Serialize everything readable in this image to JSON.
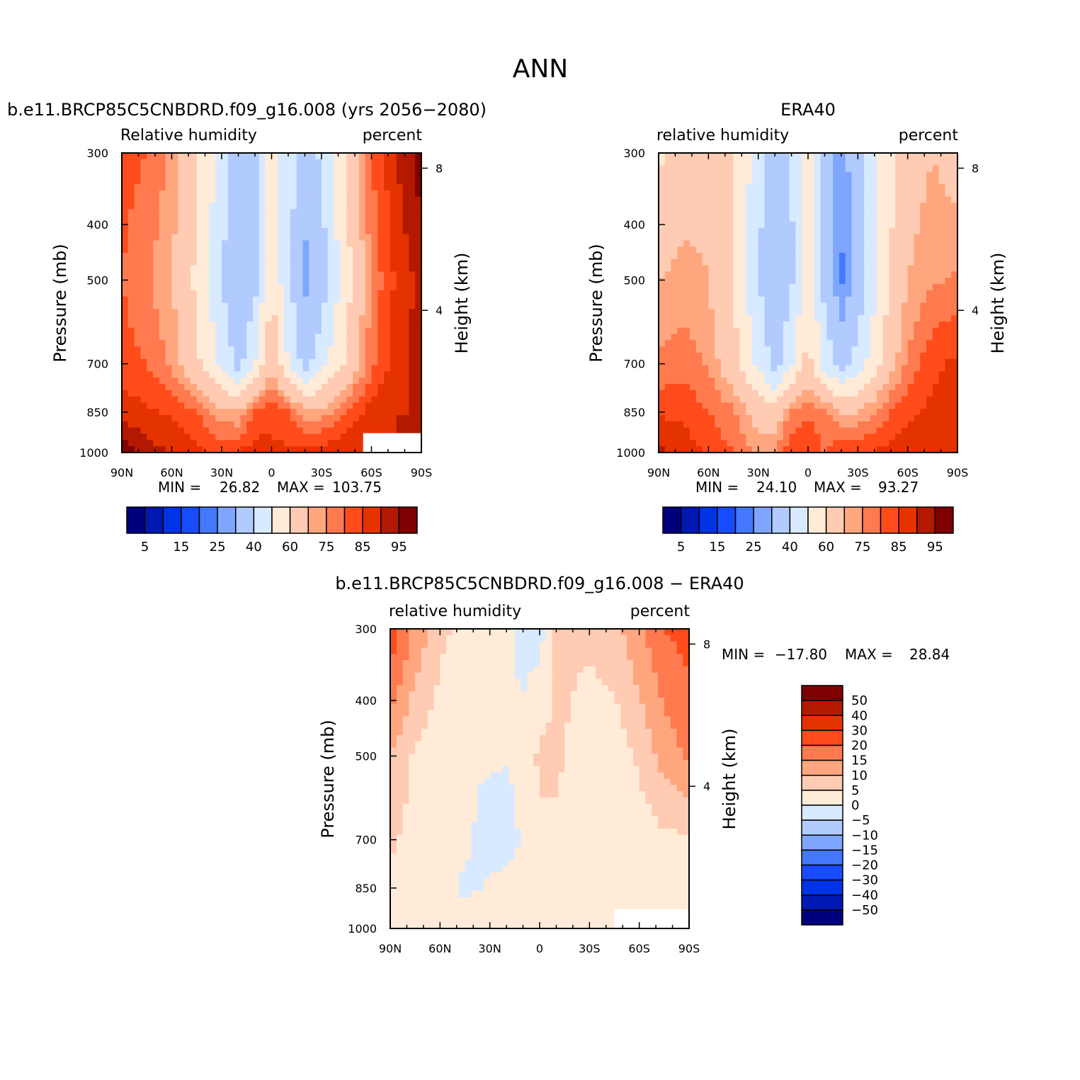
{
  "figure": {
    "title": "ANN"
  },
  "colors": {
    "full_palette": [
      "#00007f",
      "#0019b2",
      "#0033e5",
      "#1a4cff",
      "#4478ff",
      "#7fa6ff",
      "#b2cbff",
      "#d8eaff",
      "#ffebd8",
      "#ffcbb2",
      "#ffa67f",
      "#ff7a4f",
      "#ff4c1a",
      "#e53300",
      "#b21900",
      "#7f0000"
    ],
    "diff_palette": [
      "#00007f",
      "#0019b2",
      "#0033e5",
      "#1a4cff",
      "#4478ff",
      "#7fa6ff",
      "#b2cbff",
      "#d8eaff",
      "#ffebd8",
      "#ffcbb2",
      "#ffa67f",
      "#ff7a4f",
      "#ff4c1a",
      "#e53300",
      "#b21900",
      "#7f0000"
    ]
  },
  "chart_data": [
    {
      "id": "model",
      "type": "heatmap",
      "title": "b.e11.BRCP85C5CNBDRD.f09_g16.008 (yrs 2056-2080)",
      "left_label": "Relative humidity",
      "right_label": "percent",
      "ylabel": "Pressure (mb)",
      "y2label": "Height (km)",
      "xticks": [
        "90N",
        "60N",
        "30N",
        "0",
        "30S",
        "60S",
        "90S"
      ],
      "yticks": [
        "300",
        "400",
        "500",
        "700",
        "850",
        "1000"
      ],
      "y2ticks": [
        "8",
        "4"
      ],
      "xlim": [
        90,
        -90
      ],
      "ylim": [
        1000,
        300
      ],
      "stats": {
        "min_label": "MIN =",
        "min": "26.82",
        "max_label": "MAX =",
        "max": "103.75"
      },
      "colorbar_labels": [
        "5",
        "15",
        "25",
        "40",
        "60",
        "75",
        "85",
        "95"
      ],
      "levels": [
        5,
        10,
        15,
        20,
        25,
        30,
        40,
        50,
        60,
        70,
        75,
        80,
        85,
        90,
        95
      ],
      "profiles": {
        "lat": [
          90,
          75,
          60,
          45,
          30,
          20,
          10,
          0,
          -10,
          -20,
          -30,
          -45,
          -60,
          -75,
          -90
        ],
        "p300": [
          82,
          80,
          74,
          62,
          46,
          35,
          38,
          55,
          46,
          33,
          42,
          62,
          80,
          90,
          98
        ],
        "p500": [
          80,
          76,
          70,
          58,
          40,
          30,
          36,
          60,
          42,
          28,
          34,
          56,
          76,
          86,
          92
        ],
        "p700": [
          82,
          80,
          74,
          62,
          48,
          36,
          50,
          68,
          50,
          36,
          46,
          62,
          78,
          88,
          92
        ],
        "p850": [
          88,
          86,
          84,
          80,
          72,
          70,
          80,
          84,
          80,
          72,
          72,
          80,
          88,
          90,
          90
        ],
        "p1000": [
          98,
          92,
          90,
          86,
          84,
          86,
          88,
          86,
          86,
          88,
          88,
          90,
          90,
          90,
          90
        ]
      },
      "missing": {
        "lat_from": -55,
        "lat_to": -90,
        "p_from": 925,
        "p_to": 1000
      }
    },
    {
      "id": "obs",
      "type": "heatmap",
      "title": "ERA40",
      "left_label": "relative humidity",
      "right_label": "percent",
      "ylabel": "Pressure (mb)",
      "y2label": "Height (km)",
      "xticks": [
        "90N",
        "60N",
        "30N",
        "0",
        "30S",
        "60S",
        "90S"
      ],
      "yticks": [
        "300",
        "400",
        "500",
        "700",
        "850",
        "1000"
      ],
      "y2ticks": [
        "8",
        "4"
      ],
      "xlim": [
        90,
        -90
      ],
      "ylim": [
        1000,
        300
      ],
      "stats": {
        "min_label": "MIN =",
        "min": "24.10",
        "max_label": "MAX =",
        "max": "93.27"
      },
      "colorbar_labels": [
        "5",
        "15",
        "25",
        "40",
        "60",
        "75",
        "85",
        "95"
      ],
      "levels": [
        5,
        10,
        15,
        20,
        25,
        30,
        40,
        50,
        60,
        70,
        75,
        80,
        85,
        90,
        95
      ],
      "profiles": {
        "lat": [
          90,
          75,
          60,
          45,
          30,
          20,
          10,
          0,
          -10,
          -20,
          -30,
          -45,
          -60,
          -75,
          -90
        ],
        "p300": [
          58,
          66,
          68,
          62,
          44,
          34,
          40,
          54,
          38,
          26,
          36,
          55,
          66,
          70,
          66
        ],
        "p500": [
          70,
          72,
          70,
          60,
          40,
          32,
          38,
          58,
          36,
          24,
          32,
          55,
          70,
          74,
          76
        ],
        "p700": [
          76,
          78,
          74,
          64,
          48,
          36,
          48,
          64,
          46,
          36,
          44,
          62,
          76,
          84,
          86
        ],
        "p850": [
          84,
          84,
          80,
          76,
          66,
          64,
          76,
          80,
          76,
          70,
          70,
          78,
          84,
          86,
          88
        ],
        "p1000": [
          92,
          88,
          84,
          80,
          74,
          76,
          84,
          84,
          80,
          84,
          84,
          86,
          88,
          90,
          90
        ]
      }
    },
    {
      "id": "diff",
      "type": "heatmap",
      "title": "b.e11.BRCP85C5CNBDRD.f09_g16.008 - ERA40",
      "left_label": "relative humidity",
      "right_label": "percent",
      "ylabel": "Pressure (mb)",
      "y2label": "Height (km)",
      "xticks": [
        "90N",
        "60N",
        "30N",
        "0",
        "30S",
        "60S",
        "90S"
      ],
      "yticks": [
        "300",
        "400",
        "500",
        "700",
        "850",
        "1000"
      ],
      "y2ticks": [
        "8",
        "4"
      ],
      "xlim": [
        90,
        -90
      ],
      "ylim": [
        1000,
        300
      ],
      "stats": {
        "min_label": "MIN =",
        "min": "-17.80",
        "max_label": "MAX =",
        "max": "28.84"
      },
      "colorbar_labels": [
        "50",
        "40",
        "30",
        "20",
        "15",
        "10",
        "5",
        "0",
        "-5",
        "-10",
        "-15",
        "-20",
        "-30",
        "-40",
        "-50"
      ],
      "levels": [
        -50,
        -40,
        -30,
        -20,
        -15,
        -10,
        -5,
        0,
        5,
        10,
        15,
        20,
        30,
        40,
        50
      ],
      "profiles": {
        "lat": [
          90,
          75,
          60,
          45,
          30,
          20,
          10,
          0,
          -10,
          -20,
          -30,
          -45,
          -60,
          -75,
          -90
        ],
        "p300": [
          24,
          14,
          6,
          4,
          2,
          1,
          -2,
          -2,
          6,
          6,
          6,
          8,
          14,
          20,
          22
        ],
        "p500": [
          10,
          4,
          2,
          0.5,
          0.5,
          0.5,
          2,
          6,
          6,
          4,
          2,
          2,
          6,
          12,
          16
        ],
        "p700": [
          6,
          3,
          2,
          1,
          -2,
          -3,
          1,
          4,
          4,
          1,
          2,
          2,
          2,
          4,
          4
        ],
        "p850": [
          3,
          2,
          2,
          -1,
          0.5,
          2,
          2,
          4,
          4,
          2,
          2,
          4,
          3,
          2,
          2
        ],
        "p1000": [
          4,
          3,
          2,
          3,
          4,
          3,
          2,
          2,
          4,
          3,
          3,
          3,
          2,
          2,
          2
        ]
      },
      "missing": {
        "lat_from": -45,
        "lat_to": -90,
        "p_from": 925,
        "p_to": 1000
      }
    }
  ]
}
